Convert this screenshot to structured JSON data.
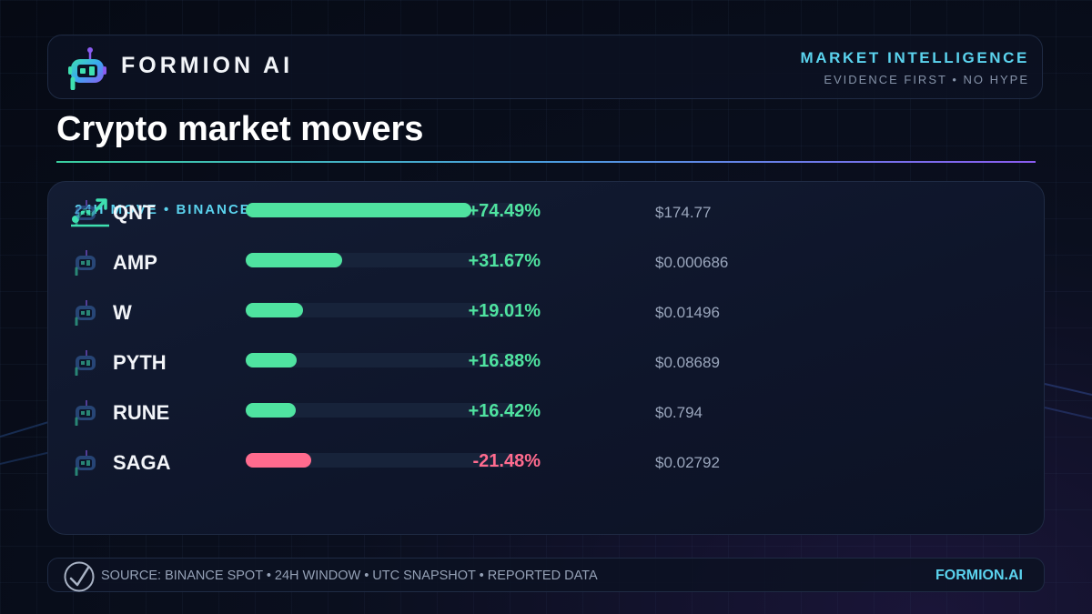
{
  "brand": {
    "name": "FORMION AI",
    "tagline": "MARKET INTELLIGENCE",
    "subtagline": "EVIDENCE FIRST • NO HYPE"
  },
  "title": "Crypto market movers",
  "panel": {
    "label": "24H MOVE • BINANCE"
  },
  "colors": {
    "gain": "#4fe3a0",
    "loss": "#ff6b8e",
    "accent": "#5bd3ee"
  },
  "chart_data": {
    "type": "bar",
    "categories": [
      "QNT",
      "AMP",
      "W",
      "PYTH",
      "RUNE",
      "SAGA"
    ],
    "values": [
      74.49,
      31.67,
      19.01,
      16.88,
      16.42,
      -21.48
    ],
    "labels": [
      "+74.49%",
      "+31.67%",
      "+19.01%",
      "+16.88%",
      "+16.42%",
      "-21.48%"
    ],
    "prices": [
      "$174.77",
      "$0.000686",
      "$0.01496",
      "$0.08689",
      "$0.794",
      "$0.02792"
    ]
  },
  "footer": {
    "source": "SOURCE: BINANCE SPOT • 24H WINDOW • UTC SNAPSHOT • REPORTED DATA",
    "site": "FORMION.AI"
  },
  "icons": [
    "robot-logo-icon",
    "trend-up-icon",
    "checkmark-icon"
  ]
}
